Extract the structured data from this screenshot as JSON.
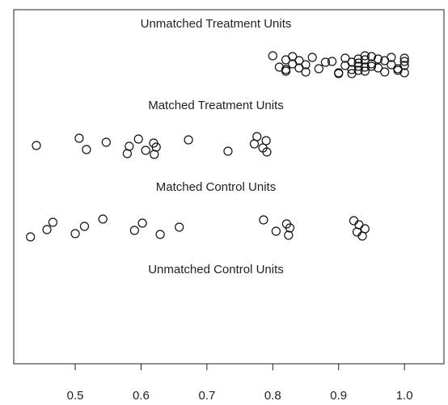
{
  "chart_data": {
    "type": "scatter",
    "xlim": [
      0.4066,
      1.06
    ],
    "xticks": [
      0.5,
      0.6,
      0.7,
      0.8,
      0.9,
      {
        "value": 1,
        "label": "1.0"
      }
    ],
    "color": "#111111",
    "series": [
      {
        "name": "Unmatched Treatment Units",
        "values": [
          0.8,
          0.81,
          0.82,
          0.82,
          0.83,
          0.83,
          0.84,
          0.84,
          0.85,
          0.85,
          0.86,
          0.87,
          0.89,
          0.9,
          0.91,
          0.91,
          0.92,
          0.92,
          0.92,
          0.93,
          0.93,
          0.93,
          0.93,
          0.94,
          0.94,
          0.94,
          0.94,
          0.95,
          0.95,
          0.96,
          0.97,
          0.97,
          0.98,
          0.98,
          0.99,
          1.0,
          1.0,
          1.0,
          1.0,
          0.82,
          0.88,
          0.9,
          0.95,
          0.96,
          0.99
        ]
      },
      {
        "name": "Matched Treatment Units",
        "values": [
          0.441,
          0.506,
          0.517,
          0.547,
          0.579,
          0.582,
          0.596,
          0.607,
          0.619,
          0.62,
          0.623,
          0.672,
          0.732,
          0.772,
          0.776,
          0.785,
          0.79,
          0.791
        ]
      },
      {
        "name": "Matched Control Units",
        "values": [
          0.432,
          0.457,
          0.466,
          0.5,
          0.514,
          0.542,
          0.59,
          0.602,
          0.629,
          0.658,
          0.786,
          0.805,
          0.821,
          0.824,
          0.826,
          0.923,
          0.928,
          0.931,
          0.936,
          0.94
        ]
      },
      {
        "name": "Unmatched Control Units",
        "values": []
      }
    ]
  }
}
